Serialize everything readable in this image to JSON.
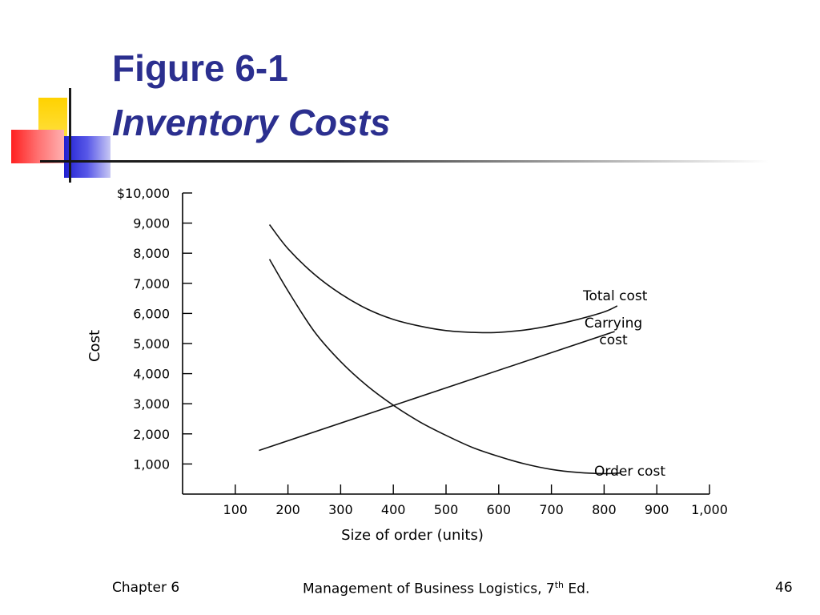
{
  "slide": {
    "title": "Figure 6-1",
    "subtitle": "Inventory Costs",
    "footer_left": "Chapter 6",
    "footer_center_prefix": "Management of Business Logistics, 7",
    "footer_center_sup": "th",
    "footer_center_suffix": " Ed.",
    "page_number": "46",
    "colors": {
      "title": "#2b2f8f",
      "deco_yellow": "#ffd200",
      "deco_red": "#ff3030",
      "deco_blue": "#3030d8"
    }
  },
  "chart_data": {
    "type": "line",
    "xlabel": "Size of order (units)",
    "ylabel": "Cost",
    "xlim": [
      0,
      1000
    ],
    "ylim": [
      0,
      10000
    ],
    "x_ticks": [
      100,
      200,
      300,
      400,
      500,
      600,
      700,
      800,
      900,
      1000
    ],
    "x_tick_labels": [
      "100",
      "200",
      "300",
      "400",
      "500",
      "600",
      "700",
      "800",
      "900",
      "1,000"
    ],
    "y_ticks": [
      1000,
      2000,
      3000,
      4000,
      5000,
      6000,
      7000,
      8000,
      9000,
      10000
    ],
    "y_tick_labels": [
      "1,000",
      "2,000",
      "3,000",
      "4,000",
      "5,000",
      "6,000",
      "7,000",
      "8,000",
      "9,000",
      "$10,000"
    ],
    "grid": false,
    "series": [
      {
        "name": "Total cost",
        "label_lines": [
          "Total cost"
        ],
        "x": [
          165,
          200,
          250,
          300,
          350,
          400,
          450,
          500,
          550,
          580,
          600,
          650,
          700,
          750,
          800,
          825
        ],
        "y": [
          8950,
          8150,
          7300,
          6650,
          6150,
          5800,
          5580,
          5430,
          5370,
          5360,
          5370,
          5450,
          5600,
          5800,
          6050,
          6250
        ]
      },
      {
        "name": "Carrying cost",
        "label_lines": [
          "Carrying",
          "cost"
        ],
        "x": [
          145,
          820
        ],
        "y": [
          1450,
          5400
        ]
      },
      {
        "name": "Order cost",
        "label_lines": [
          "Order cost"
        ],
        "x": [
          165,
          200,
          250,
          300,
          350,
          400,
          450,
          500,
          550,
          600,
          650,
          700,
          750,
          800,
          830
        ],
        "y": [
          7800,
          6750,
          5400,
          4400,
          3600,
          2950,
          2400,
          1950,
          1550,
          1250,
          1000,
          820,
          720,
          680,
          700
        ]
      }
    ]
  }
}
